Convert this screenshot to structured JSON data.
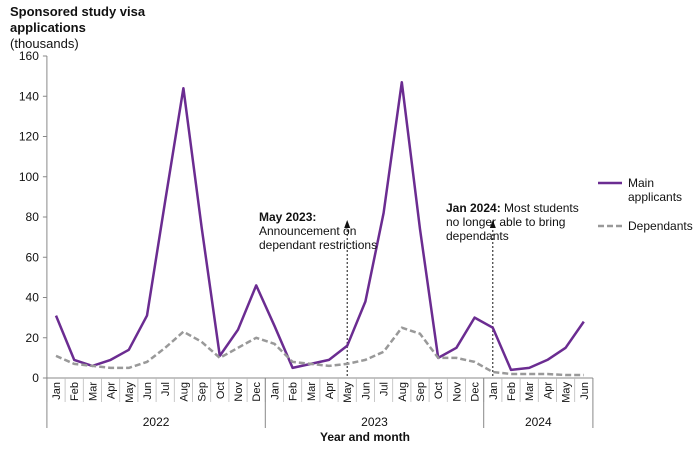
{
  "chart_data": {
    "type": "line",
    "title": "Sponsored study visa applications",
    "ylabel": "(thousands)",
    "xlabel": "Year and month",
    "ylim": [
      0,
      160
    ],
    "yticks": [
      0,
      20,
      40,
      60,
      80,
      100,
      120,
      140,
      160
    ],
    "categories": [
      "Jan",
      "Feb",
      "Mar",
      "Apr",
      "May",
      "Jun",
      "Jul",
      "Aug",
      "Sep",
      "Oct",
      "Nov",
      "Dec",
      "Jan",
      "Feb",
      "Mar",
      "Apr",
      "May",
      "Jun",
      "Jul",
      "Aug",
      "Sep",
      "Oct",
      "Nov",
      "Dec",
      "Jan",
      "Feb",
      "Mar",
      "Apr",
      "May",
      "Jun"
    ],
    "years": [
      {
        "label": "2022",
        "start": 0,
        "end": 11
      },
      {
        "label": "2023",
        "start": 12,
        "end": 23
      },
      {
        "label": "2024",
        "start": 24,
        "end": 29
      }
    ],
    "series": [
      {
        "name": "Main applicants",
        "color": "#6b2c91",
        "style": "solid",
        "values": [
          31,
          9,
          6,
          9,
          14,
          31,
          88,
          144,
          75,
          11,
          24,
          46,
          26,
          5,
          7,
          9,
          16,
          38,
          82,
          147,
          74,
          10,
          15,
          30,
          25,
          4,
          5,
          9,
          15,
          28
        ]
      },
      {
        "name": "Dependants",
        "color": "#999999",
        "style": "dashed",
        "values": [
          11,
          7,
          6,
          5,
          5,
          8,
          15,
          23,
          18,
          10,
          15,
          20,
          17,
          8,
          7,
          6,
          7,
          9,
          13,
          25,
          22,
          10,
          10,
          8,
          3,
          2,
          2,
          2,
          1.5,
          1.5
        ]
      }
    ],
    "annotations": [
      {
        "title": "May 2023:",
        "text": "Announcement on dependant restrictions",
        "index": 16
      },
      {
        "title": "Jan 2024:",
        "text": "Most students no longer able to bring dependants",
        "index": 24
      }
    ]
  },
  "header": {
    "title_line1": "Sponsored study visa",
    "title_line2": "applications",
    "units": "(thousands)"
  },
  "annotations": {
    "a1_title": "May 2023:",
    "a1_line1": "Announcement on",
    "a1_line2": "dependant restrictions",
    "a2_title": "Jan 2024:",
    "a2_line1_rest": "Most students",
    "a2_line2": "no longer able to bring",
    "a2_line3": "dependants"
  },
  "legend": {
    "main_line1": "Main",
    "main_line2": "applicants",
    "dependants": "Dependants"
  },
  "xaxis": {
    "title": "Year and month"
  }
}
